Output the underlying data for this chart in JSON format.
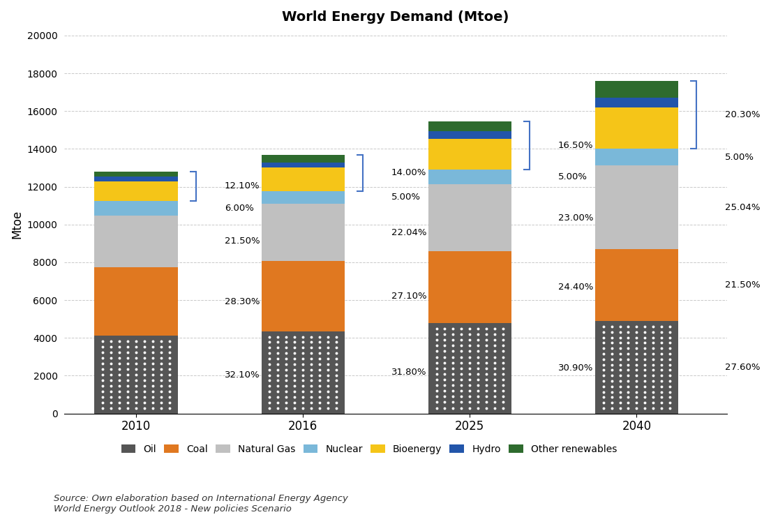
{
  "title": "World Energy Demand (Mtoe)",
  "ylabel": "Mtoe",
  "years": [
    "2010",
    "2016",
    "2025",
    "2040"
  ],
  "totals": [
    12800,
    13700,
    15500,
    17700
  ],
  "oil_pcts": [
    32.1,
    31.8,
    30.9,
    27.6
  ],
  "coal_pcts": [
    28.3,
    27.1,
    24.4,
    21.5
  ],
  "ng_pcts": [
    21.5,
    22.04,
    23.0,
    25.04
  ],
  "nuc_pcts": [
    6.0,
    5.0,
    5.0,
    5.0
  ],
  "bio_pcts": [
    8.1,
    9.0,
    10.5,
    12.3
  ],
  "hydro_pcts": [
    2.0,
    2.0,
    2.5,
    3.0
  ],
  "other_pcts": [
    2.0,
    3.0,
    3.5,
    5.0
  ],
  "top_group_labels": [
    "12.10%",
    "14.00%",
    "16.50%",
    "20.30%"
  ],
  "nuc_labels": [
    "6.00%",
    "5.00%",
    "5.00%",
    "5.00%"
  ],
  "oil_labels": [
    "32.10%",
    "31.80%",
    "30.90%",
    "27.60%"
  ],
  "coal_labels": [
    "28.30%",
    "27.10%",
    "24.40%",
    "21.50%"
  ],
  "ng_labels": [
    "21.50%",
    "22.04%",
    "23.00%",
    "25.04%"
  ],
  "colors": {
    "Oil": "#555555",
    "Coal": "#E07820",
    "Natural Gas": "#C0C0C0",
    "Nuclear": "#7AB8D9",
    "Bioenergy": "#F5C518",
    "Hydro": "#2255AA",
    "Other renewables": "#2E6B2E"
  },
  "source_text": "Source: Own elaboration based on International Energy Agency\nWorld Energy Outlook 2018 - New policies Scenario",
  "ylim": [
    0,
    20000
  ],
  "yticks": [
    0,
    2000,
    4000,
    6000,
    8000,
    10000,
    12000,
    14000,
    16000,
    18000,
    20000
  ],
  "background_color": "#FFFFFF",
  "grid_color": "#BBBBBB",
  "bracket_color": "#4472C4",
  "bar_width": 0.5,
  "x_positions": [
    0,
    1,
    2,
    3
  ]
}
